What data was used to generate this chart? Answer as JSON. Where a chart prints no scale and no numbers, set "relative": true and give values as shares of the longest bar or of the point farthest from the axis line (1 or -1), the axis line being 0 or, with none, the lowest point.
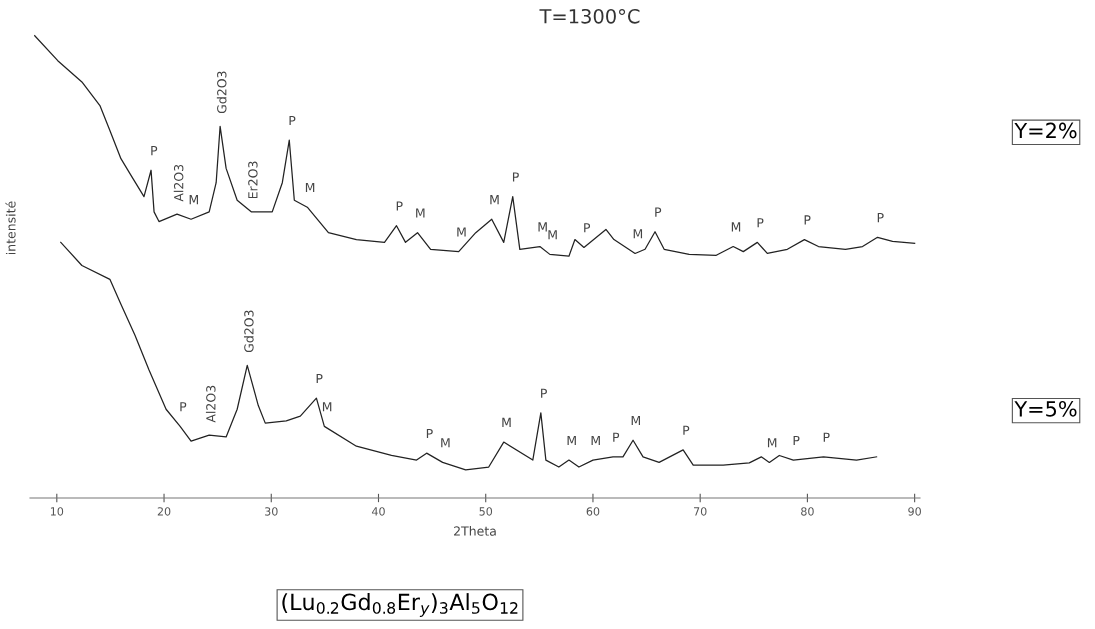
{
  "chart_data": {
    "type": "line",
    "title": "T=1300°C",
    "xlabel": "2Theta",
    "ylabel": "intensité",
    "relative": true,
    "tick_labels": "x",
    "grid": false,
    "legend": false,
    "marker": "none",
    "line_style": "solid",
    "xlim": [
      7.5,
      90.5
    ],
    "xticks": [
      10,
      20,
      30,
      40,
      50,
      60,
      70,
      80,
      90
    ],
    "series": [
      {
        "name": "Y=2%",
        "color": "#222222",
        "x": [
          7.94,
          10.09,
          12.34,
          14.02,
          14.95,
          15.98,
          16.92,
          18.13,
          18.79,
          19.07,
          19.53,
          21.21,
          22.52,
          24.21,
          24.86,
          25.23,
          25.79,
          26.82,
          28.13,
          30.09,
          31.03,
          31.68,
          32.15,
          33.36,
          35.33,
          37.94,
          40.56,
          41.68,
          42.52,
          43.64,
          44.86,
          47.48,
          49.07,
          50.56,
          51.68,
          52.52,
          53.18,
          55.05,
          55.98,
          57.76,
          58.32,
          59.16,
          61.21,
          61.96,
          63.93,
          64.86,
          65.79,
          66.64,
          68.97,
          71.5,
          73.08,
          74.02,
          75.33,
          76.26,
          78.13,
          79.72,
          81.03,
          83.55,
          85.14,
          86.54,
          87.94,
          90.0
        ],
        "values": [
          1.0,
          0.946,
          0.9,
          0.849,
          0.795,
          0.734,
          0.698,
          0.652,
          0.709,
          0.619,
          0.598,
          0.614,
          0.603,
          0.619,
          0.682,
          0.804,
          0.713,
          0.644,
          0.619,
          0.619,
          0.682,
          0.774,
          0.644,
          0.629,
          0.574,
          0.559,
          0.553,
          0.589,
          0.553,
          0.574,
          0.538,
          0.533,
          0.574,
          0.603,
          0.553,
          0.652,
          0.538,
          0.544,
          0.527,
          0.523,
          0.559,
          0.542,
          0.581,
          0.559,
          0.529,
          0.538,
          0.576,
          0.538,
          0.527,
          0.525,
          0.544,
          0.533,
          0.553,
          0.529,
          0.538,
          0.559,
          0.544,
          0.538,
          0.544,
          0.564,
          0.555,
          0.551
        ]
      },
      {
        "name": "Y=5%",
        "color": "#222222",
        "x": [
          10.37,
          12.34,
          14.95,
          15.98,
          17.29,
          18.6,
          20.19,
          21.5,
          22.52,
          24.21,
          25.79,
          26.82,
          27.76,
          28.79,
          29.44,
          31.4,
          32.71,
          34.21,
          34.95,
          37.94,
          41.21,
          43.55,
          44.49,
          45.98,
          48.13,
          50.28,
          51.68,
          54.39,
          55.14,
          55.61,
          56.82,
          57.76,
          58.69,
          60.0,
          61.87,
          62.8,
          63.74,
          64.67,
          66.17,
          68.41,
          69.35,
          72.15,
          74.58,
          75.7,
          76.45,
          77.38,
          78.69,
          81.5,
          84.58,
          86.45
        ],
        "values": [
          0.553,
          0.503,
          0.473,
          0.419,
          0.352,
          0.277,
          0.192,
          0.155,
          0.123,
          0.136,
          0.132,
          0.192,
          0.287,
          0.2,
          0.162,
          0.167,
          0.177,
          0.216,
          0.155,
          0.112,
          0.092,
          0.082,
          0.097,
          0.077,
          0.061,
          0.067,
          0.121,
          0.082,
          0.184,
          0.082,
          0.067,
          0.082,
          0.067,
          0.082,
          0.089,
          0.089,
          0.125,
          0.089,
          0.077,
          0.104,
          0.071,
          0.071,
          0.076,
          0.089,
          0.077,
          0.092,
          0.082,
          0.089,
          0.082,
          0.089
        ]
      }
    ],
    "annotations": [
      {
        "text": "P",
        "x": 18.79,
        "y": 0.709
      },
      {
        "text": "Al2O3",
        "x": 21.21,
        "y": 0.614
      },
      {
        "text": "M",
        "x": 22.52,
        "y": 0.603
      },
      {
        "text": "Gd2O3",
        "x": 25.23,
        "y": 0.804
      },
      {
        "text": "Er2O3",
        "x": 28.13,
        "y": 0.619
      },
      {
        "text": "P",
        "x": 31.68,
        "y": 0.774
      },
      {
        "text": "M",
        "x": 33.36,
        "y": 0.629
      },
      {
        "text": "P",
        "x": 41.68,
        "y": 0.589
      },
      {
        "text": "M",
        "x": 43.64,
        "y": 0.574
      },
      {
        "text": "M",
        "x": 47.48,
        "y": 0.533
      },
      {
        "text": "M",
        "x": 50.56,
        "y": 0.603
      },
      {
        "text": "P",
        "x": 52.52,
        "y": 0.652
      },
      {
        "text": "M",
        "x": 55.05,
        "y": 0.544
      },
      {
        "text": "M",
        "x": 55.98,
        "y": 0.527
      },
      {
        "text": "P",
        "x": 59.16,
        "y": 0.542
      },
      {
        "text": "M",
        "x": 63.93,
        "y": 0.529
      },
      {
        "text": "P",
        "x": 65.79,
        "y": 0.576
      },
      {
        "text": "M",
        "x": 73.08,
        "y": 0.544
      },
      {
        "text": "P",
        "x": 75.33,
        "y": 0.553
      },
      {
        "text": "P",
        "x": 79.72,
        "y": 0.559
      },
      {
        "text": "P",
        "x": 86.54,
        "y": 0.564
      },
      {
        "text": "P",
        "x": 21.5,
        "y": 0.155
      },
      {
        "text": "Al2O3",
        "x": 24.21,
        "y": 0.136
      },
      {
        "text": "Gd2O3",
        "x": 27.76,
        "y": 0.287
      },
      {
        "text": "P",
        "x": 34.21,
        "y": 0.216
      },
      {
        "text": "M",
        "x": 34.95,
        "y": 0.155
      },
      {
        "text": "P",
        "x": 44.49,
        "y": 0.097
      },
      {
        "text": "M",
        "x": 45.98,
        "y": 0.077
      },
      {
        "text": "M",
        "x": 51.68,
        "y": 0.121
      },
      {
        "text": "P",
        "x": 55.14,
        "y": 0.184
      },
      {
        "text": "M",
        "x": 57.76,
        "y": 0.082
      },
      {
        "text": "M",
        "x": 60.0,
        "y": 0.082
      },
      {
        "text": "P",
        "x": 61.87,
        "y": 0.089
      },
      {
        "text": "M",
        "x": 63.74,
        "y": 0.125
      },
      {
        "text": "P",
        "x": 68.41,
        "y": 0.104
      },
      {
        "text": "M",
        "x": 76.45,
        "y": 0.077
      },
      {
        "text": "P",
        "x": 78.69,
        "y": 0.082
      },
      {
        "text": "P",
        "x": 81.5,
        "y": 0.089
      },
      "(Lu$_{0.2}$Gd$_{0.8}$Er$_{y}$)$_{3}$Al$_{5}$O$_{12}$"
    ]
  }
}
